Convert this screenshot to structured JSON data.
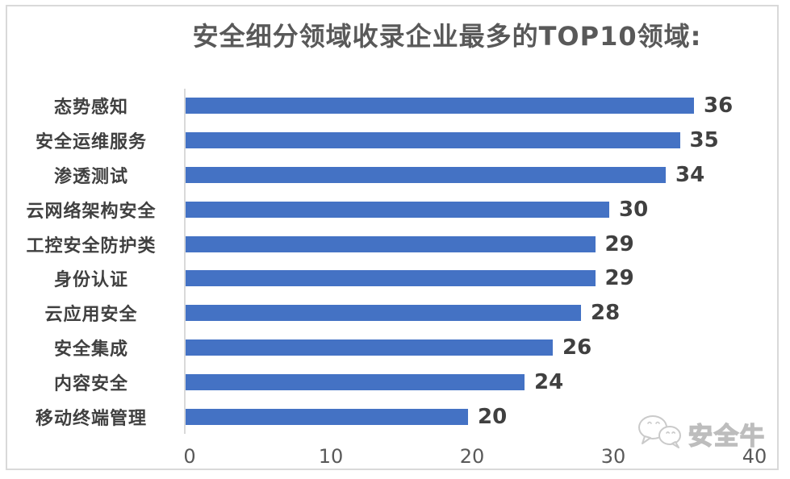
{
  "title": "安全细分领域收录企业最多的TOP10领域:",
  "chart_data": {
    "type": "bar",
    "orientation": "horizontal",
    "title": "安全细分领域收录企业最多的TOP10领域:",
    "categories": [
      "态势感知",
      "安全运维服务",
      "渗透测试",
      "云网络架构安全",
      "工控安全防护类",
      "身份认证",
      "云应用安全",
      "安全集成",
      "内容安全",
      "移动终端管理"
    ],
    "values": [
      36,
      35,
      34,
      30,
      29,
      29,
      28,
      26,
      24,
      20
    ],
    "data_labels_shown": true,
    "xlabel": "",
    "ylabel": "",
    "xlim": [
      0,
      40
    ],
    "x_ticks": [
      0,
      10,
      20,
      30,
      40
    ],
    "grid": false,
    "legend": "none",
    "bar_color": "#4472C4"
  },
  "colors": {
    "bar": "#4472C4",
    "title_text": "#595959",
    "label_text": "#404040",
    "tick_text": "#595959",
    "axis_line": "#d9d9d9",
    "frame_border": "#d9d9d9",
    "background": "#ffffff"
  },
  "watermark": {
    "text": "安全牛",
    "logo": "wechat-chat-bubbles-icon"
  }
}
